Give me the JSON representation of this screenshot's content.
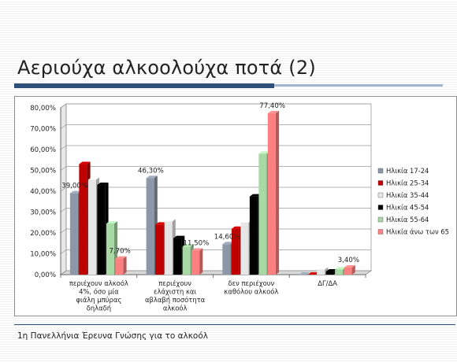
{
  "slide": {
    "title": "Αεριούχα αλκοολούχα ποτά (2)",
    "footer": "1η Πανελλήνια Έρευνα Γνώσης για το αλκοόλ"
  },
  "colors": {
    "title_rule": "#2e4f78",
    "series": [
      "#8c97a8",
      "#c00000",
      "#e6e6e6",
      "#000000",
      "#a8d8a4",
      "#ff8080"
    ]
  },
  "chart_data": {
    "type": "bar",
    "style": "3d-clustered-column",
    "categories": [
      [
        "περιέχουν αλκοόλ",
        "4%, όσο μία",
        "φιάλη μπύρας",
        "δηλαδή"
      ],
      [
        "περιέχουν",
        "ελάχιστη και",
        "αβλαβή ποσότητα",
        "αλκοόλ"
      ],
      [
        "δεν περιέχουν",
        "καθόλου αλκοόλ"
      ],
      [
        "ΔΓ/ΔΑ"
      ]
    ],
    "series": [
      {
        "name": "Ηλικία 17-24",
        "values": [
          39.0,
          46.3,
          14.6,
          0.0
        ]
      },
      {
        "name": "Ηλικία 25-34",
        "values": [
          53.0,
          24.0,
          22.0,
          0.0
        ]
      },
      {
        "name": "Ηλικία 35-44",
        "values": [
          45.5,
          25.5,
          25.0,
          2.5
        ]
      },
      {
        "name": "Ηλικία 45-54",
        "values": [
          43.0,
          17.5,
          37.5,
          1.5
        ]
      },
      {
        "name": "Ηλικία 55-64",
        "values": [
          24.5,
          13.5,
          58.0,
          2.5
        ]
      },
      {
        "name": "Ηλικία άνω των 65",
        "values": [
          7.7,
          11.5,
          77.4,
          3.4
        ]
      }
    ],
    "data_labels": [
      {
        "series": 0,
        "category": 0,
        "text": "39,00%"
      },
      {
        "series": 0,
        "category": 1,
        "text": "46,30%"
      },
      {
        "series": 0,
        "category": 2,
        "text": "14,60%"
      },
      {
        "series": 5,
        "category": 0,
        "text": "7,70%"
      },
      {
        "series": 5,
        "category": 1,
        "text": "11,50%"
      },
      {
        "series": 5,
        "category": 2,
        "text": "77,40%"
      },
      {
        "series": 5,
        "category": 3,
        "text": "3,40%"
      }
    ],
    "ylim": [
      0,
      80
    ],
    "yticks": [
      "0,00%",
      "10,00%",
      "20,00%",
      "30,00%",
      "40,00%",
      "50,00%",
      "60,00%",
      "70,00%",
      "80,00%"
    ],
    "grid": true,
    "legend_position": "right"
  }
}
